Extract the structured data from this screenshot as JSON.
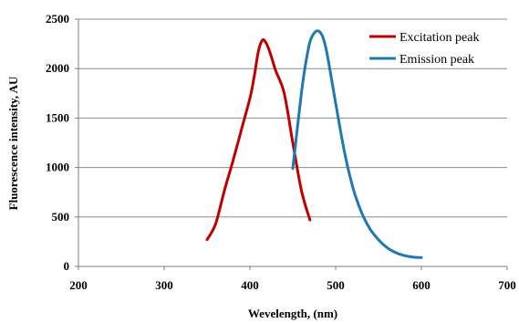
{
  "chart_data": {
    "type": "line",
    "title": "",
    "xlabel": "Wevelength, (nm)",
    "ylabel": "Fluorescence intensity, AU",
    "xlim": [
      200,
      700
    ],
    "ylim": [
      0,
      2500
    ],
    "xticks": [
      200,
      300,
      400,
      500,
      600,
      700
    ],
    "yticks": [
      0,
      500,
      1000,
      1500,
      2000,
      2500
    ],
    "grid": "horizontal",
    "legend_position": "top-right",
    "series": [
      {
        "name": "Excitation peak",
        "color": "#c00000",
        "x": [
          350,
          360,
          370,
          380,
          390,
          400,
          405,
          410,
          415,
          420,
          425,
          430,
          440,
          450,
          460,
          470
        ],
        "y": [
          270,
          430,
          760,
          1060,
          1380,
          1700,
          1920,
          2180,
          2290,
          2240,
          2120,
          1980,
          1750,
          1250,
          770,
          470
        ]
      },
      {
        "name": "Emission peak",
        "color": "#1f77b4",
        "x": [
          450,
          460,
          465,
          470,
          475,
          480,
          485,
          490,
          500,
          510,
          520,
          530,
          540,
          550,
          560,
          570,
          580,
          590,
          600
        ],
        "y": [
          990,
          1750,
          2050,
          2270,
          2360,
          2380,
          2320,
          2150,
          1650,
          1170,
          800,
          550,
          380,
          270,
          190,
          140,
          110,
          95,
          90
        ]
      }
    ]
  }
}
